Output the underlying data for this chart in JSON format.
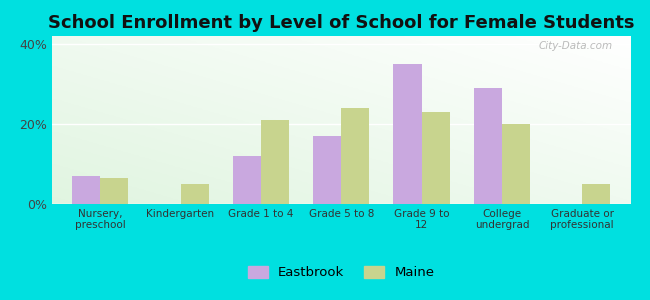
{
  "title": "School Enrollment by Level of School for Female Students",
  "categories": [
    "Nursery,\npreschool",
    "Kindergarten",
    "Grade 1 to 4",
    "Grade 5 to 8",
    "Grade 9 to\n12",
    "College\nundergrad",
    "Graduate or\nprofessional"
  ],
  "eastbrook": [
    7,
    0,
    12,
    17,
    35,
    29,
    0
  ],
  "maine": [
    6.5,
    5,
    21,
    24,
    23,
    20,
    5
  ],
  "bar_color_eastbrook": "#c9a8df",
  "bar_color_maine": "#c8d48e",
  "background_color": "#00e0e0",
  "plot_bg_color": "#e8f5e9",
  "ylabel_ticks": [
    "0%",
    "20%",
    "40%"
  ],
  "yticks": [
    0,
    20,
    40
  ],
  "ylim": [
    0,
    42
  ],
  "legend_labels": [
    "Eastbrook",
    "Maine"
  ],
  "title_fontsize": 13,
  "watermark": "City-Data.com"
}
